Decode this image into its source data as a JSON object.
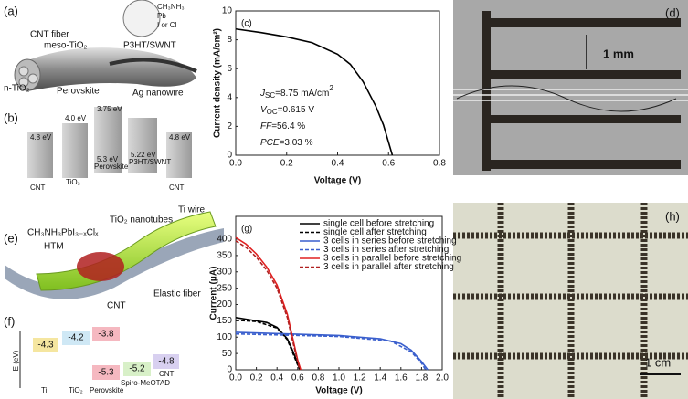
{
  "panels": {
    "a": {
      "label": "(a)",
      "fiber": "CNT fiber",
      "meso": "meso-TiO₂",
      "ion1": "CH₃NH₃",
      "ion2": "Pb",
      "ion3": "I or Cl",
      "htm": "P3HT/SWNT",
      "ntio2": "n-TiO₂",
      "perov": "Perovskite",
      "ag": "Ag nanowire"
    },
    "b": {
      "label": "(b)",
      "levels": [
        "4.8 eV",
        "4.0 eV",
        "3.75 eV",
        "5.3 eV",
        "5.22 eV",
        "4.8 eV"
      ],
      "materials": [
        "CNT",
        "TiO₂",
        "Perovskite",
        "P3HT/SWNT",
        "CNT"
      ]
    },
    "d": {
      "label": "(d)",
      "scale": "1 mm"
    },
    "e": {
      "label": "(e)",
      "ti": "Ti wire",
      "nt": "TiO₂ nanotubes",
      "perov": "CH₃NH₃PbI₃₋ₓClₓ",
      "htm": "HTM",
      "cnt": "CNT",
      "elastic": "Elastic fiber"
    },
    "f": {
      "label": "(f)",
      "axis": "E (eV)",
      "levels": [
        "-4.3",
        "-4.2",
        "-3.8",
        "-5.3",
        "-5.2",
        "-4.8"
      ],
      "materials": [
        "Ti",
        "TiO₂",
        "Perovskite",
        "Spiro-MeOTAD",
        "CNT"
      ]
    },
    "h": {
      "label": "(h)",
      "scale": "1 cm"
    }
  },
  "chart_data": [
    {
      "type": "line",
      "panel_label": "(c)",
      "x_label": "Voltage (V)",
      "y_label": "Current density (mA/cm²)",
      "color": "#000000",
      "x": [
        0,
        0.1,
        0.2,
        0.3,
        0.4,
        0.45,
        0.5,
        0.55,
        0.58,
        0.6,
        0.615
      ],
      "values": [
        8.75,
        8.5,
        8.2,
        7.8,
        7.0,
        6.3,
        5.1,
        3.4,
        2.1,
        0.9,
        0
      ],
      "xlim": [
        0,
        0.8
      ],
      "ylim": [
        0,
        10
      ],
      "xticks": [
        {
          "value": 0,
          "label": "0.0"
        },
        {
          "value": 0.2,
          "label": "0.2"
        },
        {
          "value": 0.4,
          "label": "0.4"
        },
        {
          "value": 0.6,
          "label": "0.6"
        },
        {
          "value": 0.8,
          "label": "0.8"
        }
      ],
      "yticks": [
        0,
        2,
        4,
        6,
        8,
        10
      ],
      "annotations": [
        {
          "symbol": "J",
          "subscript": "SC",
          "text": "=8.75 mA/cm",
          "superscript": "2"
        },
        {
          "symbol": "V",
          "subscript": "OC",
          "text": "=0.615 V"
        },
        {
          "symbol": "FF",
          "text": "=56.4 %"
        },
        {
          "symbol": "PCE",
          "text": "=3.03 %"
        }
      ]
    },
    {
      "type": "line",
      "panel_label": "(g)",
      "x_label": "Voltage (V)",
      "y_label": "Current (μA)",
      "legend": "upper right",
      "xlim": [
        0,
        2.0
      ],
      "ylim": [
        0,
        470
      ],
      "xticks": [
        {
          "value": 0,
          "label": "0.0"
        },
        {
          "value": 0.2,
          "label": "0.2"
        },
        {
          "value": 0.4,
          "label": "0.4"
        },
        {
          "value": 0.6,
          "label": "0.6"
        },
        {
          "value": 0.8,
          "label": "0.8"
        },
        {
          "value": 1.0,
          "label": "1.0"
        },
        {
          "value": 1.2,
          "label": "1.2"
        },
        {
          "value": 1.4,
          "label": "1.4"
        },
        {
          "value": 1.6,
          "label": "1.6"
        },
        {
          "value": 1.8,
          "label": "1.8"
        },
        {
          "value": 2.0,
          "label": "2.0"
        }
      ],
      "yticks": [
        0,
        50,
        100,
        150,
        200,
        250,
        300,
        350,
        400
      ],
      "series": [
        {
          "name": "single cell before stretching",
          "color": "#000000",
          "dashed": false,
          "x": [
            0,
            0.2,
            0.3,
            0.4,
            0.5,
            0.55,
            0.6,
            0.62
          ],
          "values": [
            160,
            150,
            145,
            130,
            95,
            60,
            20,
            0
          ]
        },
        {
          "name": "single cell after stretching",
          "color": "#000000",
          "dashed": true,
          "x": [
            0,
            0.2,
            0.4,
            0.5,
            0.6,
            0.62
          ],
          "values": [
            152,
            148,
            128,
            92,
            15,
            0
          ]
        },
        {
          "name": "3 cells in series before stretching",
          "color": "#3a5fcd",
          "dashed": false,
          "x": [
            0,
            0.5,
            1.0,
            1.4,
            1.6,
            1.7,
            1.8,
            1.86
          ],
          "values": [
            115,
            110,
            105,
            95,
            80,
            60,
            25,
            0
          ]
        },
        {
          "name": "3 cells in series after stretching",
          "color": "#3a5fcd",
          "dashed": true,
          "x": [
            0,
            1.0,
            1.5,
            1.7,
            1.8,
            1.84
          ],
          "values": [
            110,
            102,
            88,
            55,
            20,
            0
          ]
        },
        {
          "name": "3 cells in parallel before stretching",
          "color": "#e02020",
          "dashed": false,
          "x": [
            0,
            0.1,
            0.2,
            0.3,
            0.4,
            0.5,
            0.55,
            0.6,
            0.63
          ],
          "values": [
            405,
            385,
            355,
            315,
            260,
            170,
            100,
            30,
            0
          ]
        },
        {
          "name": "3 cells in parallel after stretching",
          "color": "#b02020",
          "dashed": true,
          "x": [
            0,
            0.1,
            0.2,
            0.3,
            0.4,
            0.5,
            0.55,
            0.6,
            0.62
          ],
          "values": [
            395,
            375,
            345,
            305,
            250,
            160,
            90,
            25,
            0
          ]
        }
      ]
    }
  ]
}
